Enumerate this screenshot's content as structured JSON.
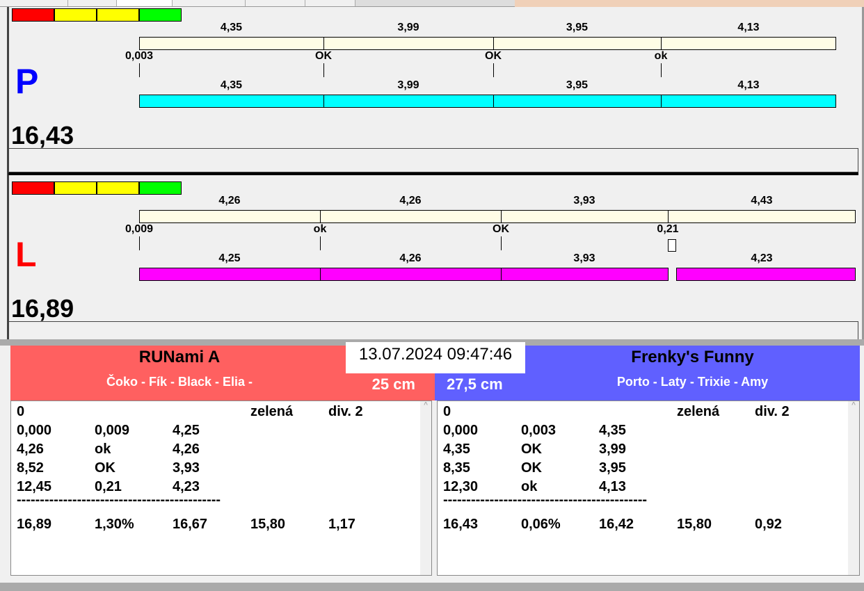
{
  "colors": {
    "scale": [
      "#ff0000",
      "#ffff00",
      "#ffff00",
      "#00ff00"
    ],
    "p_bar": "#00ffff",
    "l_bar": "#ff00ff",
    "team_a": "#ff6060",
    "team_b": "#6060ff"
  },
  "p": {
    "letter": "P",
    "total": "16,43",
    "top_values": [
      "4,35",
      "3,99",
      "3,95",
      "4,13"
    ],
    "marks": [
      "0,003",
      "OK",
      "OK",
      "ok"
    ],
    "bottom_values": [
      "4,35",
      "3,99",
      "3,95",
      "4,13"
    ]
  },
  "l": {
    "letter": "L",
    "total": "16,89",
    "top_values": [
      "4,26",
      "4,26",
      "3,93",
      "4,43"
    ],
    "marks": [
      "0,009",
      "ok",
      "OK",
      "0,21"
    ],
    "bottom_values": [
      "4,25",
      "4,26",
      "3,93",
      "4,23"
    ]
  },
  "datetime": "13.07.2024 09:47:46",
  "team_a": {
    "name": "RUNami A",
    "dogs": "Čoko - Fík - Black - Elia -",
    "height": "25 cm",
    "rows": [
      [
        "0",
        "",
        "",
        "zelená",
        "div. 2"
      ],
      [
        "0,000",
        "0,009",
        "4,25",
        "",
        ""
      ],
      [
        "4,26",
        "ok",
        "4,26",
        "",
        ""
      ],
      [
        "8,52",
        "OK",
        "3,93",
        "",
        ""
      ],
      [
        "12,45",
        "0,21",
        "4,23",
        "",
        ""
      ]
    ],
    "separator": "--------------------------------------------",
    "totals": [
      "16,89",
      "1,30%",
      "16,67",
      "15,80",
      "1,17"
    ]
  },
  "team_b": {
    "name": "Frenky's Funny",
    "dogs": "Porto - Laty - Trixie - Amy",
    "height": "27,5 cm",
    "rows": [
      [
        "0",
        "",
        "",
        "zelená",
        "div. 2"
      ],
      [
        "0,000",
        "0,003",
        "4,35",
        "",
        ""
      ],
      [
        "4,35",
        "OK",
        "3,99",
        "",
        ""
      ],
      [
        "8,35",
        "OK",
        "3,95",
        "",
        ""
      ],
      [
        "12,30",
        "ok",
        "4,13",
        "",
        ""
      ]
    ],
    "separator": "--------------------------------------------",
    "totals": [
      "16,43",
      "0,06%",
      "16,42",
      "15,80",
      "0,92"
    ]
  }
}
